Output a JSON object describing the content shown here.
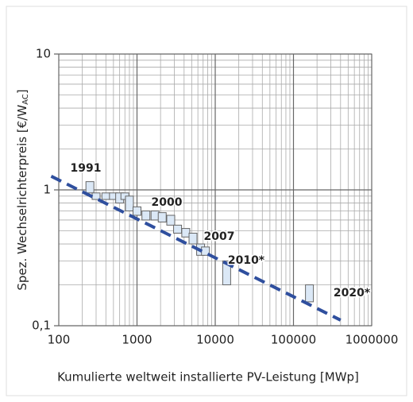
{
  "chart_data": {
    "type": "range-box",
    "ylabel": {
      "text": "Spez. Wechselrichterpreis [€/W",
      "sub": "AC",
      "end": "]"
    },
    "xlabel": "Kumulierte weltweit installierte PV-Leistung [MWp]",
    "log_x": true,
    "log_y": true,
    "grid": true,
    "minor_grid": true,
    "xlim": [
      100,
      1000000
    ],
    "ylim": [
      0.1,
      10
    ],
    "xticks": [
      100,
      1000,
      10000,
      100000,
      1000000
    ],
    "yticks": [
      {
        "value": 0.1,
        "label": "0,1"
      },
      1,
      10
    ],
    "box_color": "#dbe8f6",
    "series": [
      {
        "x": [
          250,
          300,
          400,
          500,
          600,
          700,
          800,
          1000,
          1300,
          1700,
          2100,
          2700,
          3300,
          4200,
          5200,
          6500,
          7500,
          14000,
          160000
        ],
        "low": [
          0.95,
          0.85,
          0.85,
          0.85,
          0.8,
          0.85,
          0.7,
          0.65,
          0.6,
          0.6,
          0.58,
          0.55,
          0.48,
          0.45,
          0.4,
          0.33,
          0.33,
          0.2,
          0.15
        ],
        "high": [
          1.15,
          0.95,
          0.95,
          0.95,
          0.95,
          0.95,
          0.9,
          0.75,
          0.7,
          0.7,
          0.68,
          0.65,
          0.55,
          0.52,
          0.48,
          0.4,
          0.38,
          0.3,
          0.2
        ]
      }
    ],
    "trend": {
      "color": "#2f4f9e",
      "x": [
        80,
        400000
      ],
      "y": [
        1.26,
        0.11
      ]
    },
    "annotations": [
      "1991",
      "2000",
      "2007",
      "2010*",
      "2020*"
    ]
  }
}
